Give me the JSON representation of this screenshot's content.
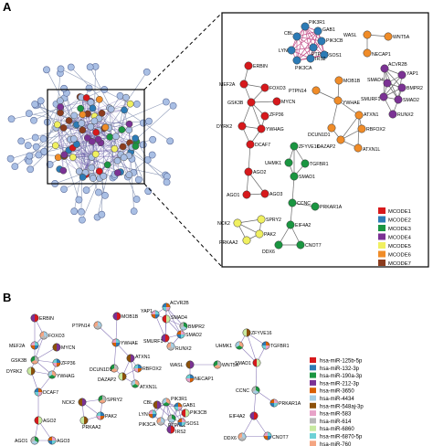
{
  "panels": {
    "a": "A",
    "b": "B"
  },
  "colors": {
    "MCODE1": "#d7191c",
    "MCODE2": "#2c7bb6",
    "MCODE3": "#1a9641",
    "MCODE4": "#7b3294",
    "MCODE5": "#f0f060",
    "MCODE6": "#f08c28",
    "MCODE7": "#8c3c1e",
    "bg_node": "#a9bfe4",
    "edge": "#6a6a6a"
  },
  "legend_a": [
    "MCODE1",
    "MCODE2",
    "MCODE3",
    "MCODE4",
    "MCODE5",
    "MCODE6",
    "MCODE7"
  ],
  "legend_b": [
    {
      "label": "hsa-miR-125b-5p",
      "color": "#d7191c"
    },
    {
      "label": "hsa-miR-132-3p",
      "color": "#2c7bb6"
    },
    {
      "label": "hsa-miR-190a-3p",
      "color": "#1a9641"
    },
    {
      "label": "hsa-miR-212-3p",
      "color": "#7b3294"
    },
    {
      "label": "hsa-miR-3650",
      "color": "#d95f02"
    },
    {
      "label": "hsa-miR-4434",
      "color": "#a6cee3"
    },
    {
      "label": "hsa-miR-548aj-3p",
      "color": "#8c510a"
    },
    {
      "label": "hsa-miR-583",
      "color": "#e7a2c8"
    },
    {
      "label": "hsa-miR-614",
      "color": "#b8b8b8"
    },
    {
      "label": "hsa-miR-6860",
      "color": "#c7e9a0"
    },
    {
      "label": "hsa-miR-6870-5p",
      "color": "#6ed1d6"
    },
    {
      "label": "hsa-miR-760",
      "color": "#f4a582"
    }
  ],
  "nodes_a": [
    [
      "PIK3R1",
      "MCODE2"
    ],
    [
      "GAB1",
      "MCODE2"
    ],
    [
      "PIK3CB",
      "MCODE2"
    ],
    [
      "PTPN11",
      "MCODE2"
    ],
    [
      "SOS1",
      "MCODE2"
    ],
    [
      "IRS2",
      "MCODE2"
    ],
    [
      "PIK3CA",
      "MCODE2"
    ],
    [
      "LYN",
      "MCODE2"
    ],
    [
      "CBL",
      "MCODE2"
    ],
    [
      "WASL",
      "MCODE6"
    ],
    [
      "WNT5A",
      "MCODE6"
    ],
    [
      "NECAP1",
      "MCODE6"
    ],
    [
      "ERBIN",
      "MCODE1"
    ],
    [
      "MEF2A",
      "MCODE1"
    ],
    [
      "FOXO3",
      "MCODE1"
    ],
    [
      "GSK3B",
      "MCODE1"
    ],
    [
      "MYCN",
      "MCODE1"
    ],
    [
      "ZFP36",
      "MCODE1"
    ],
    [
      "DYRK2",
      "MCODE1"
    ],
    [
      "YWHAG",
      "MCODE1"
    ],
    [
      "DCAF7",
      "MCODE1"
    ],
    [
      "AGO2",
      "MCODE1"
    ],
    [
      "AGO1",
      "MCODE1"
    ],
    [
      "AGO3",
      "MCODE1"
    ],
    [
      "ACVR2B",
      "MCODE4"
    ],
    [
      "YAP1",
      "MCODE4"
    ],
    [
      "SMAD4",
      "MCODE4"
    ],
    [
      "BMPR2",
      "MCODE4"
    ],
    [
      "SMAD2",
      "MCODE4"
    ],
    [
      "SMURF1",
      "MCODE4"
    ],
    [
      "RUNX2",
      "MCODE4"
    ],
    [
      "MOB1B",
      "MCODE6"
    ],
    [
      "PTPN14",
      "MCODE6"
    ],
    [
      "YWHAE",
      "MCODE6"
    ],
    [
      "ATXN1",
      "MCODE6"
    ],
    [
      "DCUN1D1",
      "MCODE6"
    ],
    [
      "RBFOX2",
      "MCODE6"
    ],
    [
      "DAZAP2",
      "MCODE6"
    ],
    [
      "ATXN1L",
      "MCODE6"
    ],
    [
      "ZFYVE16",
      "MCODE3"
    ],
    [
      "UHMK1",
      "MCODE3"
    ],
    [
      "TGFBR1",
      "MCODE3"
    ],
    [
      "SMAD1",
      "MCODE3"
    ],
    [
      "CCNC",
      "MCODE3"
    ],
    [
      "PRKAR1A",
      "MCODE3"
    ],
    [
      "EIF4A2",
      "MCODE3"
    ],
    [
      "DDX6",
      "MCODE3"
    ],
    [
      "CNOT7",
      "MCODE3"
    ],
    [
      "NCK2",
      "MCODE5"
    ],
    [
      "SPRY2",
      "MCODE5"
    ],
    [
      "PAK2",
      "MCODE5"
    ],
    [
      "PRKAA2",
      "MCODE5"
    ]
  ],
  "nodes_b": [
    "ERBIN",
    "FOXO3",
    "MEF2A",
    "MYCN",
    "GSK3B",
    "ZFP36",
    "DYRK2",
    "YWHAG",
    "DCAF7",
    "AGO2",
    "AGO1",
    "AGO3",
    "MOB1B",
    "PTPN14",
    "YWHAE",
    "ATXN1",
    "DCUN1D1",
    "RBFOX2",
    "DAZAP2",
    "ATXN1L",
    "ACVR2B",
    "SMAD4",
    "BMPR2",
    "SMAD2",
    "SMURF1",
    "RUNX2",
    "YAP1",
    "WASL",
    "WNT5A",
    "NECAP1",
    "ZFYVE16",
    "UHMK1",
    "TGFBR1",
    "SMAD1",
    "CCNC",
    "PRKAR1A",
    "EIF4A2",
    "DDX6",
    "CNOT7",
    "NCK2",
    "SPRY2",
    "PAK2",
    "PRKAA2",
    "PIK3R1",
    "GAB1",
    "PIK3CB",
    "PTPN11",
    "SOS1",
    "IRS2",
    "PIK3CA",
    "LYN",
    "CBL"
  ]
}
